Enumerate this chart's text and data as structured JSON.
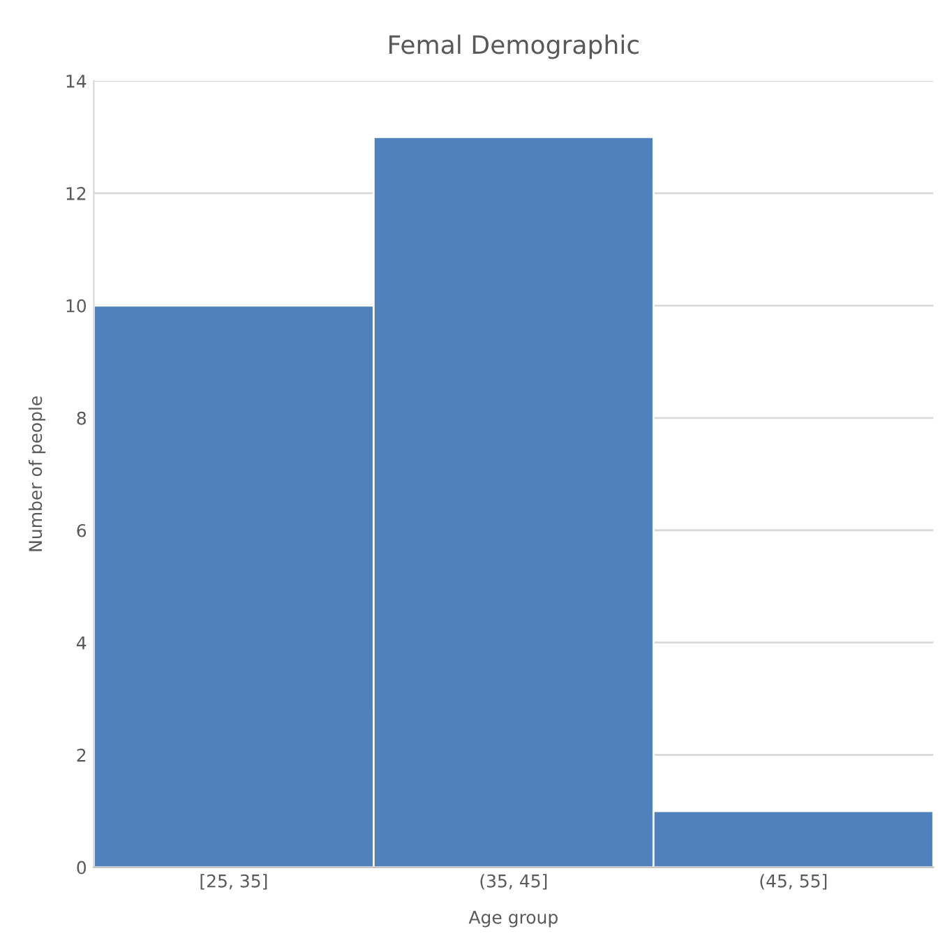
{
  "chart_data": {
    "type": "bar",
    "title": "Femal Demographic",
    "xlabel": "Age group",
    "ylabel": "Number of people",
    "categories": [
      "[25, 35]",
      "(35, 45]",
      "(45, 55]"
    ],
    "values": [
      10,
      13,
      1
    ],
    "color": "#4f81bd",
    "ylim": [
      0,
      14
    ],
    "yticks": [
      0,
      2,
      4,
      6,
      8,
      10,
      12,
      14
    ],
    "grid": "y"
  }
}
